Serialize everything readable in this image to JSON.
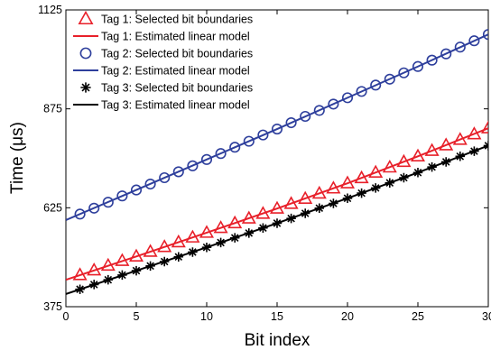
{
  "chart_data": {
    "type": "line",
    "xlabel": "Bit index",
    "ylabel": "Time (μs)",
    "xlim": [
      0,
      30
    ],
    "ylim": [
      375,
      1125
    ],
    "xticks": [
      0,
      5,
      10,
      15,
      20,
      25,
      30
    ],
    "yticks": [
      375,
      625,
      875,
      1125
    ],
    "grid": false,
    "legend_position": "top-left",
    "series": [
      {
        "name": "Tag 1: Selected bit boundaries",
        "kind": "markers",
        "marker": "triangle",
        "color": "#e8202a",
        "x": [
          1,
          2,
          3,
          4,
          5,
          6,
          7,
          8,
          9,
          10,
          11,
          12,
          13,
          14,
          15,
          16,
          17,
          18,
          19,
          20,
          21,
          22,
          23,
          24,
          25,
          26,
          27,
          28,
          29,
          30
        ],
        "y": [
          455,
          467,
          479,
          491,
          502,
          514,
          526,
          538,
          550,
          562,
          574,
          586,
          598,
          610,
          623,
          635,
          648,
          661,
          674,
          687,
          700,
          714,
          727,
          741,
          755,
          769,
          783,
          797,
          811,
          826
        ]
      },
      {
        "name": "Tag 1: Estimated linear model",
        "kind": "line",
        "color": "#e8202a",
        "x": [
          0,
          5,
          10,
          15,
          20,
          25,
          30
        ],
        "y": [
          443,
          502,
          562,
          623,
          687,
          755,
          826
        ]
      },
      {
        "name": "Tag 2: Selected bit boundaries",
        "kind": "markers",
        "marker": "circle",
        "color": "#2e3f9c",
        "x": [
          1,
          2,
          3,
          4,
          5,
          6,
          7,
          8,
          9,
          10,
          11,
          12,
          13,
          14,
          15,
          16,
          17,
          18,
          19,
          20,
          21,
          22,
          23,
          24,
          25,
          26,
          27,
          28,
          29,
          30
        ],
        "y": [
          609,
          624,
          639,
          655,
          670,
          685,
          701,
          716,
          731,
          747,
          762,
          778,
          793,
          809,
          824,
          840,
          856,
          871,
          887,
          903,
          919,
          935,
          950,
          966,
          982,
          998,
          1014,
          1031,
          1047,
          1063
        ]
      },
      {
        "name": "Tag 2: Estimated linear model",
        "kind": "line",
        "color": "#2e3f9c",
        "x": [
          0,
          5,
          10,
          15,
          20,
          25,
          30
        ],
        "y": [
          594,
          670,
          747,
          824,
          903,
          982,
          1063
        ]
      },
      {
        "name": "Tag 3: Selected bit boundaries",
        "kind": "markers",
        "marker": "asterisk",
        "color": "#000000",
        "x": [
          1,
          2,
          3,
          4,
          5,
          6,
          7,
          8,
          9,
          10,
          11,
          12,
          13,
          14,
          15,
          16,
          17,
          18,
          19,
          20,
          21,
          22,
          23,
          24,
          25,
          26,
          27,
          28,
          29,
          30
        ],
        "y": [
          419,
          431,
          443,
          455,
          466,
          478,
          489,
          501,
          513,
          525,
          537,
          549,
          561,
          574,
          586,
          598,
          611,
          624,
          636,
          649,
          662,
          675,
          688,
          701,
          714,
          728,
          741,
          755,
          768,
          782
        ]
      },
      {
        "name": "Tag 3: Estimated linear model",
        "kind": "line",
        "color": "#000000",
        "x": [
          0,
          5,
          10,
          15,
          20,
          25,
          30
        ],
        "y": [
          407,
          466,
          525,
          586,
          649,
          714,
          782
        ]
      }
    ]
  }
}
